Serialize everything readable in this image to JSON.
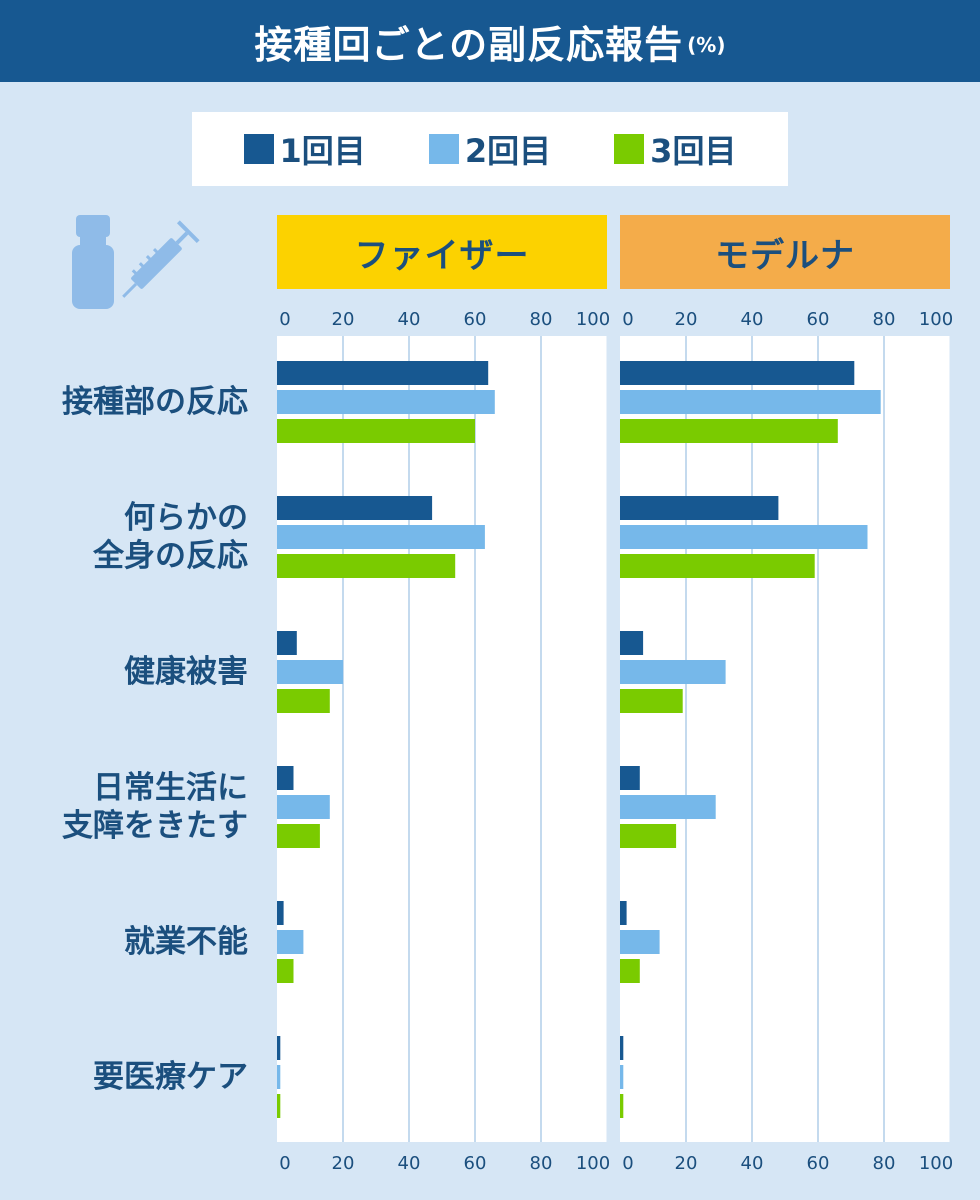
{
  "header": {
    "title": "接種回ごとの副反応報告",
    "unit": "(%)"
  },
  "legend": [
    {
      "label": "1回目",
      "color": "#175891"
    },
    {
      "label": "2回目",
      "color": "#76b8ea"
    },
    {
      "label": "3回目",
      "color": "#7acb00"
    }
  ],
  "icons": [
    "vaccine-vial-icon",
    "syringe-icon"
  ],
  "chart_data": {
    "type": "bar",
    "orientation": "horizontal",
    "title": "接種回ごとの副反応報告",
    "unit": "(%)",
    "xlim": [
      0,
      100
    ],
    "x_ticks": [
      "0",
      "20",
      "40",
      "60",
      "80",
      "100"
    ],
    "grid": true,
    "legend_position": "top",
    "categories": [
      "接種部の反応",
      "何らかの\n全身の反応",
      "健康被害",
      "日常生活に\n支障をきたす",
      "就業不能",
      "要医療ケア"
    ],
    "panels": [
      {
        "name": "ファイザー",
        "series": [
          {
            "name": "1回目",
            "values": [
              64,
              47,
              6,
              5,
              2,
              1
            ]
          },
          {
            "name": "2回目",
            "values": [
              66,
              63,
              20,
              16,
              8,
              1
            ]
          },
          {
            "name": "3回目",
            "values": [
              60,
              54,
              16,
              13,
              5,
              1
            ]
          }
        ]
      },
      {
        "name": "モデルナ",
        "series": [
          {
            "name": "1回目",
            "values": [
              71,
              48,
              7,
              6,
              2,
              1
            ]
          },
          {
            "name": "2回目",
            "values": [
              79,
              75,
              32,
              29,
              12,
              1
            ]
          },
          {
            "name": "3回目",
            "values": [
              66,
              59,
              19,
              17,
              6,
              1
            ]
          }
        ]
      }
    ]
  }
}
